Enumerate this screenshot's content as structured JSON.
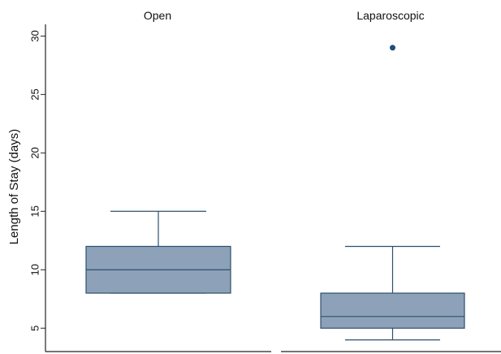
{
  "chart_data": {
    "type": "box",
    "ylabel": "Length of Stay (days)",
    "ylim": [
      3,
      31
    ],
    "yticks": [
      5,
      10,
      15,
      20,
      25,
      30
    ],
    "grid": false,
    "box_fill": "#8da2b8",
    "line_color": "#2e4f6e",
    "outlier_color": "#1f4e79",
    "panels": [
      {
        "title": "Open",
        "lower_whisker": 8,
        "q1": 8,
        "median": 10,
        "q3": 12,
        "upper_whisker": 15,
        "outliers": []
      },
      {
        "title": "Laparoscopic",
        "lower_whisker": 4,
        "q1": 5,
        "median": 6,
        "q3": 8,
        "upper_whisker": 12,
        "outliers": [
          29
        ]
      }
    ]
  }
}
